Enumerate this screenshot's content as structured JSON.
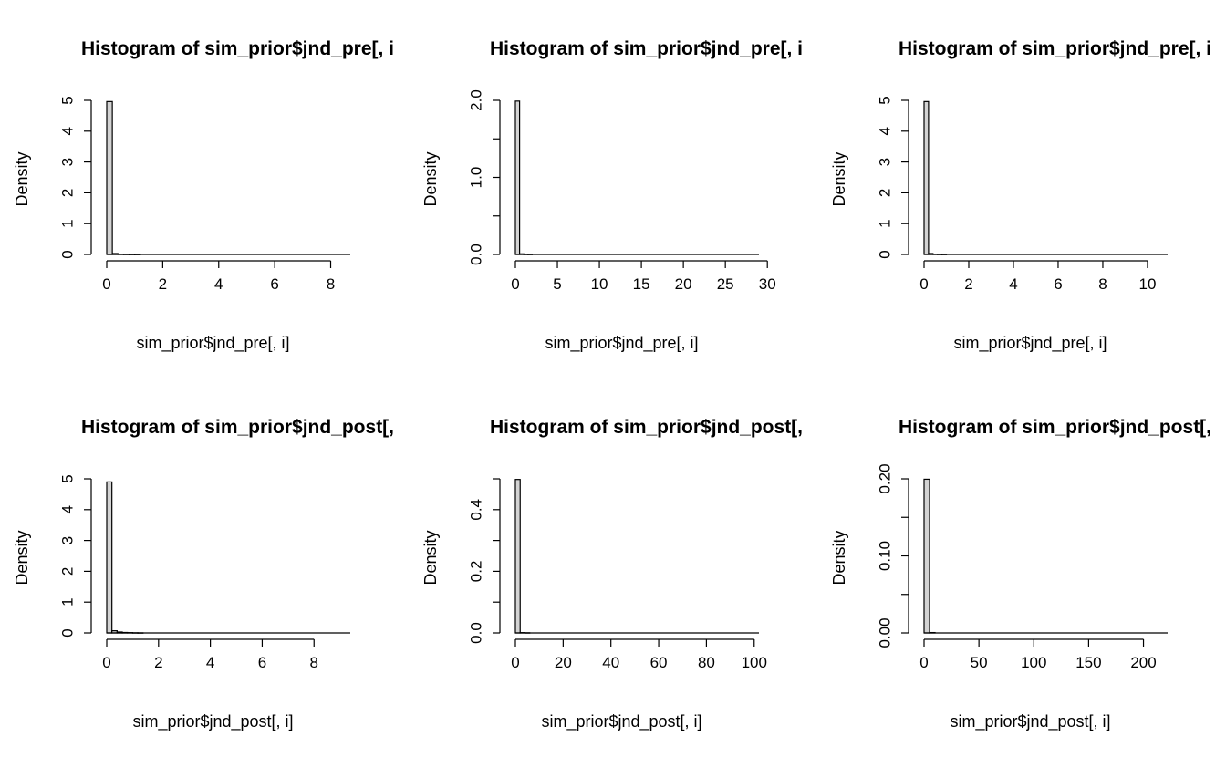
{
  "chart_data": [
    {
      "type": "bar",
      "title": "Histogram of sim_prior$jnd_pre[, i",
      "xlabel": "sim_prior$jnd_pre[, i]",
      "ylabel": "Density",
      "xlim": [
        0,
        8.7
      ],
      "ylim": [
        0,
        5
      ],
      "x_ticks": [
        0,
        2,
        4,
        6,
        8
      ],
      "x_tick_labels": [
        "0",
        "2",
        "4",
        "6",
        "8"
      ],
      "y_ticks": [
        0,
        1,
        2,
        3,
        4,
        5
      ],
      "y_tick_labels": [
        "0",
        "1",
        "2",
        "3",
        "4",
        "5"
      ],
      "bin_width": 0.2,
      "bin_starts": [
        0,
        0.2,
        0.4,
        0.6,
        0.8,
        1.0
      ],
      "values": [
        4.96,
        0.03,
        0.008,
        0.004,
        0.002,
        0.001
      ]
    },
    {
      "type": "bar",
      "title": "Histogram of sim_prior$jnd_pre[, i",
      "xlabel": "sim_prior$jnd_pre[, i]",
      "ylabel": "Density",
      "xlim": [
        0,
        29
      ],
      "ylim": [
        0,
        2
      ],
      "x_ticks": [
        0,
        5,
        10,
        15,
        20,
        25,
        30
      ],
      "x_tick_labels": [
        "0",
        "5",
        "10",
        "15",
        "20",
        "25",
        "30"
      ],
      "y_ticks": [
        0,
        0.5,
        1,
        1.5,
        2
      ],
      "y_tick_labels": [
        "0.0",
        "",
        "1.0",
        "",
        "2.0"
      ],
      "bin_width": 0.5,
      "bin_starts": [
        0,
        0.5,
        1.0,
        1.5
      ],
      "values": [
        1.99,
        0.008,
        0.002,
        0.001
      ]
    },
    {
      "type": "bar",
      "title": "Histogram of sim_prior$jnd_pre[, i",
      "xlabel": "sim_prior$jnd_pre[, i]",
      "ylabel": "Density",
      "xlim": [
        0,
        10.9
      ],
      "ylim": [
        0,
        5
      ],
      "x_ticks": [
        0,
        2,
        4,
        6,
        8,
        10
      ],
      "x_tick_labels": [
        "0",
        "2",
        "4",
        "6",
        "8",
        "10"
      ],
      "y_ticks": [
        0,
        1,
        2,
        3,
        4,
        5
      ],
      "y_tick_labels": [
        "0",
        "1",
        "2",
        "3",
        "4",
        "5"
      ],
      "bin_width": 0.2,
      "bin_starts": [
        0,
        0.2,
        0.4,
        0.6,
        0.8
      ],
      "values": [
        4.96,
        0.03,
        0.008,
        0.004,
        0.002
      ]
    },
    {
      "type": "bar",
      "title": "Histogram of sim_prior$jnd_post[,",
      "xlabel": "sim_prior$jnd_post[, i]",
      "ylabel": "Density",
      "xlim": [
        0,
        9.4
      ],
      "ylim": [
        0,
        5
      ],
      "x_ticks": [
        0,
        2,
        4,
        6,
        8
      ],
      "x_tick_labels": [
        "0",
        "2",
        "4",
        "6",
        "8"
      ],
      "y_ticks": [
        0,
        1,
        2,
        3,
        4,
        5
      ],
      "y_tick_labels": [
        "0",
        "1",
        "2",
        "3",
        "4",
        "5"
      ],
      "bin_width": 0.2,
      "bin_starts": [
        0,
        0.2,
        0.4,
        0.6,
        0.8,
        1.0,
        1.2
      ],
      "values": [
        4.9,
        0.07,
        0.03,
        0.015,
        0.01,
        0.005,
        0.003
      ]
    },
    {
      "type": "bar",
      "title": "Histogram of sim_prior$jnd_post[,",
      "xlabel": "sim_prior$jnd_post[, i]",
      "ylabel": "Density",
      "xlim": [
        0,
        102
      ],
      "ylim": [
        0,
        0.5
      ],
      "x_ticks": [
        0,
        20,
        40,
        60,
        80,
        100
      ],
      "x_tick_labels": [
        "0",
        "20",
        "40",
        "60",
        "80",
        "100"
      ],
      "y_ticks": [
        0,
        0.1,
        0.2,
        0.3,
        0.4,
        0.5
      ],
      "y_tick_labels": [
        "0.0",
        "",
        "0.2",
        "",
        "0.4",
        ""
      ],
      "bin_width": 2,
      "bin_starts": [
        0,
        2,
        4
      ],
      "values": [
        0.498,
        0.001,
        0.0005
      ]
    },
    {
      "type": "bar",
      "title": "Histogram of sim_prior$jnd_post[,",
      "xlabel": "sim_prior$jnd_post[, i]",
      "ylabel": "Density",
      "xlim": [
        0,
        222
      ],
      "ylim": [
        0,
        0.2
      ],
      "x_ticks": [
        0,
        50,
        100,
        150,
        200
      ],
      "x_tick_labels": [
        "0",
        "50",
        "100",
        "150",
        "200"
      ],
      "y_ticks": [
        0,
        0.05,
        0.1,
        0.15,
        0.2
      ],
      "y_tick_labels": [
        "0.00",
        "",
        "0.10",
        "",
        "0.20"
      ],
      "bin_width": 5,
      "bin_starts": [
        0,
        5
      ],
      "values": [
        0.1995,
        0.0005
      ]
    }
  ]
}
